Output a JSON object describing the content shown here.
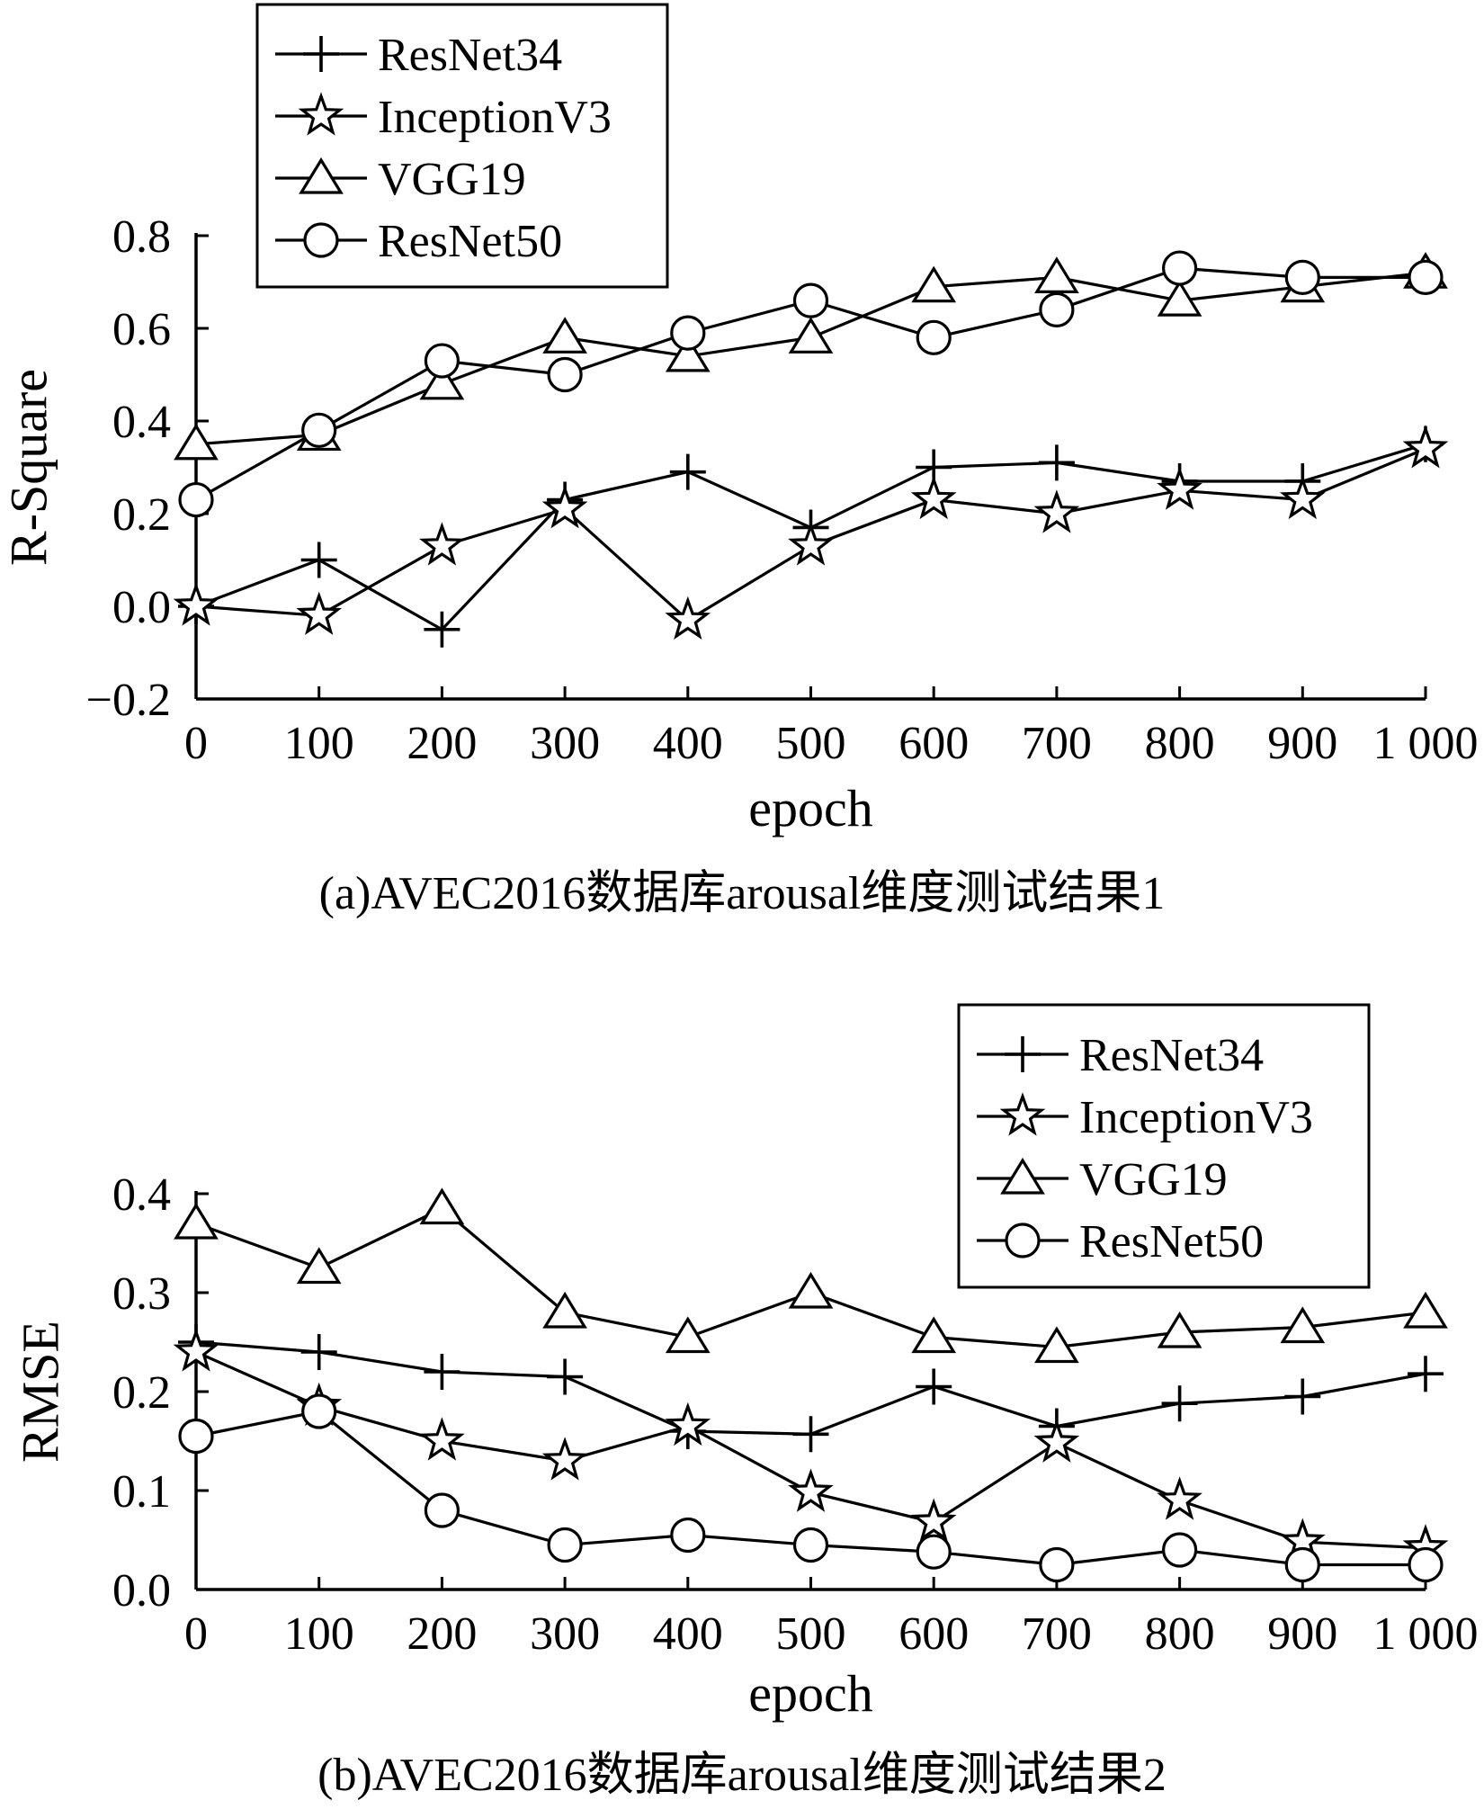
{
  "chart_data": [
    {
      "type": "line",
      "caption": "(a)AVEC2016数据库arousal维度测试结果1",
      "xlabel": "epoch",
      "ylabel": "R-Square",
      "xlim": [
        0,
        1000
      ],
      "ylim": [
        -0.2,
        0.8
      ],
      "x_ticks": [
        0,
        100,
        200,
        300,
        400,
        500,
        600,
        700,
        800,
        900,
        1000
      ],
      "x_tick_labels": [
        "0",
        "100",
        "200",
        "300",
        "400",
        "500",
        "600",
        "700",
        "800",
        "900",
        "1 000"
      ],
      "y_ticks": [
        -0.2,
        0.0,
        0.2,
        0.4,
        0.6,
        0.8
      ],
      "y_tick_labels": [
        "−0.2",
        "0.0",
        "0.2",
        "0.4",
        "0.6",
        "0.8"
      ],
      "grid": false,
      "legend_position": "top-left",
      "x": [
        0,
        100,
        200,
        300,
        400,
        500,
        600,
        700,
        800,
        900,
        1000
      ],
      "series": [
        {
          "name": "ResNet34",
          "marker": "plus",
          "values": [
            0.0,
            0.1,
            -0.05,
            0.23,
            0.29,
            0.17,
            0.3,
            0.31,
            0.27,
            0.27,
            0.35
          ]
        },
        {
          "name": "InceptionV3",
          "marker": "star",
          "values": [
            0.0,
            -0.02,
            0.13,
            0.21,
            -0.03,
            0.13,
            0.23,
            0.2,
            0.25,
            0.23,
            0.34
          ]
        },
        {
          "name": "VGG19",
          "marker": "triangle",
          "values": [
            0.35,
            0.37,
            0.48,
            0.58,
            0.54,
            0.58,
            0.69,
            0.71,
            0.66,
            0.69,
            0.72
          ]
        },
        {
          "name": "ResNet50",
          "marker": "circle",
          "values": [
            0.23,
            0.38,
            0.53,
            0.5,
            0.59,
            0.66,
            0.58,
            0.64,
            0.73,
            0.71,
            0.71
          ]
        }
      ]
    },
    {
      "type": "line",
      "caption": "(b)AVEC2016数据库arousal维度测试结果2",
      "xlabel": "epoch",
      "ylabel": "RMSE",
      "xlim": [
        0,
        1000
      ],
      "ylim": [
        0.0,
        0.4
      ],
      "x_ticks": [
        0,
        100,
        200,
        300,
        400,
        500,
        600,
        700,
        800,
        900,
        1000
      ],
      "x_tick_labels": [
        "0",
        "100",
        "200",
        "300",
        "400",
        "500",
        "600",
        "700",
        "800",
        "900",
        "1 000"
      ],
      "y_ticks": [
        0.0,
        0.1,
        0.2,
        0.3,
        0.4
      ],
      "y_tick_labels": [
        "0.0",
        "0.1",
        "0.2",
        "0.3",
        "0.4"
      ],
      "grid": false,
      "legend_position": "top-right",
      "x": [
        0,
        100,
        200,
        300,
        400,
        500,
        600,
        700,
        800,
        900,
        1000
      ],
      "series": [
        {
          "name": "ResNet34",
          "marker": "plus",
          "values": [
            0.25,
            0.24,
            0.22,
            0.215,
            0.16,
            0.157,
            0.205,
            0.165,
            0.188,
            0.195,
            0.218
          ]
        },
        {
          "name": "InceptionV3",
          "marker": "star",
          "values": [
            0.24,
            0.185,
            0.15,
            0.13,
            0.165,
            0.098,
            0.068,
            0.148,
            0.09,
            0.048,
            0.042
          ]
        },
        {
          "name": "VGG19",
          "marker": "triangle",
          "values": [
            0.37,
            0.325,
            0.385,
            0.28,
            0.255,
            0.3,
            0.255,
            0.245,
            0.26,
            0.265,
            0.28
          ]
        },
        {
          "name": "ResNet50",
          "marker": "circle",
          "values": [
            0.155,
            0.18,
            0.08,
            0.045,
            0.055,
            0.045,
            0.038,
            0.025,
            0.04,
            0.025,
            0.025
          ]
        }
      ]
    }
  ]
}
